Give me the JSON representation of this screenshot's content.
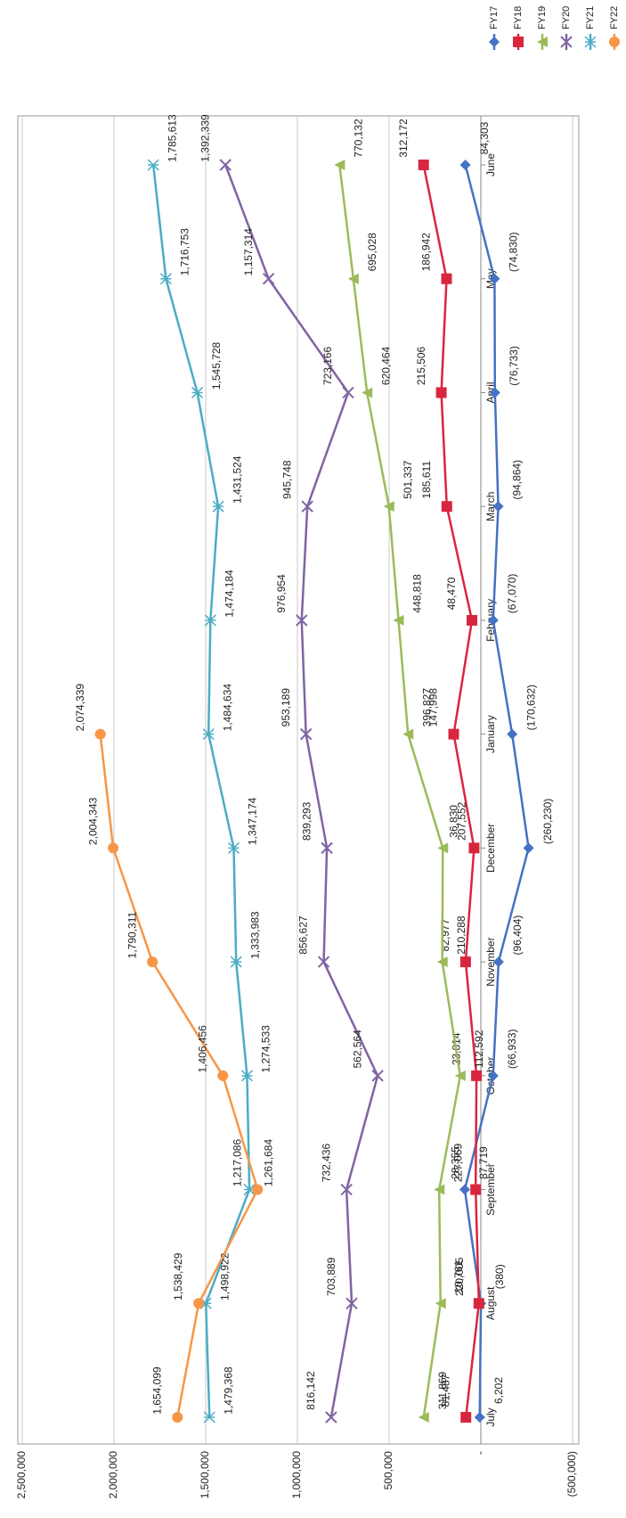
{
  "chart_data": {
    "type": "line",
    "categories": [
      "July",
      "August",
      "September",
      "October",
      "November",
      "December",
      "January",
      "February",
      "March",
      "April",
      "May",
      "June"
    ],
    "ylim": [
      -500000,
      2500000
    ],
    "yticks": [
      {
        "value": -500000,
        "label": "(500,000)"
      },
      {
        "value": 0,
        "label": "-"
      },
      {
        "value": 500000,
        "label": "500,000"
      },
      {
        "value": 1000000,
        "label": "1,000,000"
      },
      {
        "value": 1500000,
        "label": "1,500,000"
      },
      {
        "value": 2000000,
        "label": "2,000,000"
      },
      {
        "value": 2500000,
        "label": "2,500,000"
      }
    ],
    "grid": true,
    "legend": "top-right",
    "series": [
      {
        "name": "FY17",
        "color": "#4472c4",
        "marker": "diamond",
        "values": [
          6202,
          -380,
          87719,
          -66933,
          -96404,
          -260230,
          -170632,
          -67070,
          -94864,
          -76733,
          -74830,
          84303
        ],
        "value_labels": [
          "6,202",
          "(380)",
          "87,719",
          "(66,933)",
          "(96,404)",
          "(260,230)",
          "(170,632)",
          "(67,070)",
          "(94,864)",
          "(76,733)",
          "(74,830)",
          "84,303"
        ]
      },
      {
        "name": "FY18",
        "color": "#d9263f",
        "marker": "square",
        "values": [
          81487,
          10761,
          28355,
          23814,
          82977,
          36830,
          147998,
          48470,
          185611,
          215506,
          186942,
          312172
        ],
        "value_labels": [
          "81,487",
          "10,761",
          "28,355",
          "23,814",
          "82,977",
          "36,830",
          "147,998",
          "48,470",
          "185,611",
          "215,506",
          "186,942",
          "312,172"
        ]
      },
      {
        "name": "FY19",
        "color": "#9bbb59",
        "marker": "triangle",
        "values": [
          311869,
          220005,
          227069,
          112592,
          210288,
          207552,
          396827,
          448818,
          501337,
          620464,
          695028,
          770132
        ],
        "value_labels": [
          "311,869",
          "220,005",
          "227,069",
          "112,592",
          "210,288",
          "207,552",
          "396,827",
          "448,818",
          "501,337",
          "620,464",
          "695,028",
          "770,132"
        ]
      },
      {
        "name": "FY20",
        "color": "#8064a2",
        "marker": "x",
        "values": [
          816142,
          703889,
          732436,
          562564,
          856627,
          839293,
          953189,
          976954,
          945748,
          723166,
          1157314,
          1392339
        ],
        "value_labels": [
          "816,142",
          "703,889",
          "732,436",
          "562,564",
          "856,627",
          "839,293",
          "953,189",
          "976,954",
          "945,748",
          "723,166",
          "1,157,314",
          "1,392,339"
        ]
      },
      {
        "name": "FY21",
        "color": "#4bacc6",
        "marker": "star",
        "values": [
          1479368,
          1498922,
          1261684,
          1274533,
          1333983,
          1347174,
          1484634,
          1474184,
          1431524,
          1545728,
          1716753,
          1785613
        ],
        "value_labels": [
          "1,479,368",
          "1,498,922",
          "1,261,684",
          "1,274,533",
          "1,333,983",
          "1,347,174",
          "1,484,634",
          "1,474,184",
          "1,431,524",
          "1,545,728",
          "1,716,753",
          "1,785,613"
        ]
      },
      {
        "name": "FY22",
        "color": "#f79646",
        "marker": "circle",
        "values": [
          1654099,
          1538429,
          1217086,
          1406456,
          1790311,
          2004343,
          2074339,
          null,
          null,
          null,
          null,
          null
        ],
        "value_labels": [
          "1,654,099",
          "1,538,429",
          "1,217,086",
          "1,406,456",
          "1,790,311",
          "2,004,343",
          "2,074,339",
          null,
          null,
          null,
          null,
          null
        ]
      }
    ]
  }
}
